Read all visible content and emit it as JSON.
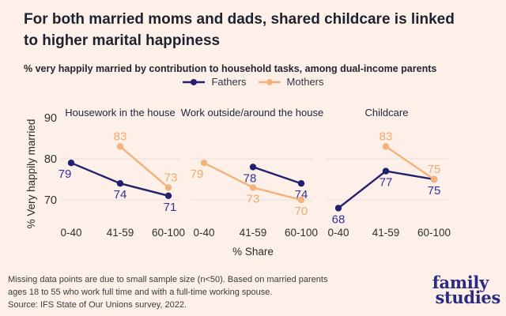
{
  "chart_data": {
    "type": "line",
    "title": "For both married moms and dads, shared childcare is linked to higher marital happiness",
    "title_lines": [
      "For both married moms and dads, shared childcare is linked",
      "to higher marital happiness"
    ],
    "subtitle": "% very happily married by contribution to household tasks, among dual-income parents",
    "ylabel": "% Very happily married",
    "xlabel": "% Share",
    "ylim": [
      64,
      91
    ],
    "yticks": [
      90,
      80,
      70
    ],
    "gridline_values": [
      80,
      70
    ],
    "grid": "on",
    "legend_position": "top-center",
    "categories": [
      "0-40",
      "41-59",
      "60-100"
    ],
    "series_styles": [
      {
        "name": "Fathers",
        "color": "#23206f",
        "label_color": "#34319b"
      },
      {
        "name": "Mothers",
        "color": "#f4b17c",
        "label_color": "#f2a96b"
      }
    ],
    "panels": [
      {
        "title": "Housework in the house",
        "series": [
          {
            "name": "Fathers",
            "values": [
              79,
              74,
              71
            ],
            "label_side": [
              "below",
              "below",
              "below"
            ],
            "label_dx": [
              -8,
              0,
              2
            ]
          },
          {
            "name": "Mothers",
            "values": [
              null,
              83,
              73
            ],
            "label_side": [
              null,
              "above",
              "above"
            ],
            "label_dx": [
              0,
              0,
              3
            ]
          }
        ]
      },
      {
        "title": "Work outside/around the house",
        "series": [
          {
            "name": "Fathers",
            "values": [
              null,
              78,
              74
            ],
            "label_side": [
              null,
              "below",
              "below"
            ],
            "label_dx": [
              0,
              -4,
              0
            ]
          },
          {
            "name": "Mothers",
            "values": [
              79,
              73,
              70
            ],
            "label_side": [
              "below",
              "below",
              "below"
            ],
            "label_dx": [
              -9,
              0,
              0
            ]
          }
        ]
      },
      {
        "title": "Childcare",
        "series": [
          {
            "name": "Fathers",
            "values": [
              68,
              77,
              75
            ],
            "label_side": [
              "below",
              "below",
              "below"
            ],
            "label_dx": [
              0,
              0,
              0
            ]
          },
          {
            "name": "Mothers",
            "values": [
              null,
              83,
              75
            ],
            "label_side": [
              null,
              "above",
              "above"
            ],
            "label_dx": [
              0,
              0,
              0
            ]
          }
        ]
      }
    ]
  },
  "footnote": {
    "lines": [
      "Missing data points are due to small sample size (n<50). Based on married parents",
      "ages 18 to 55 who work full time and with a full-time working spouse.",
      "Source: IFS State of Our Unions survey, 2022."
    ]
  },
  "logo": {
    "line1": "family",
    "line2": "studies",
    "color": "#2b2a85"
  },
  "colors": {
    "background": "#fcf0e9",
    "fathers_navy": "#23206f",
    "mothers_orange": "#f4b17c",
    "gridline": "#e8e2dd",
    "title_text": "#1e222e"
  }
}
